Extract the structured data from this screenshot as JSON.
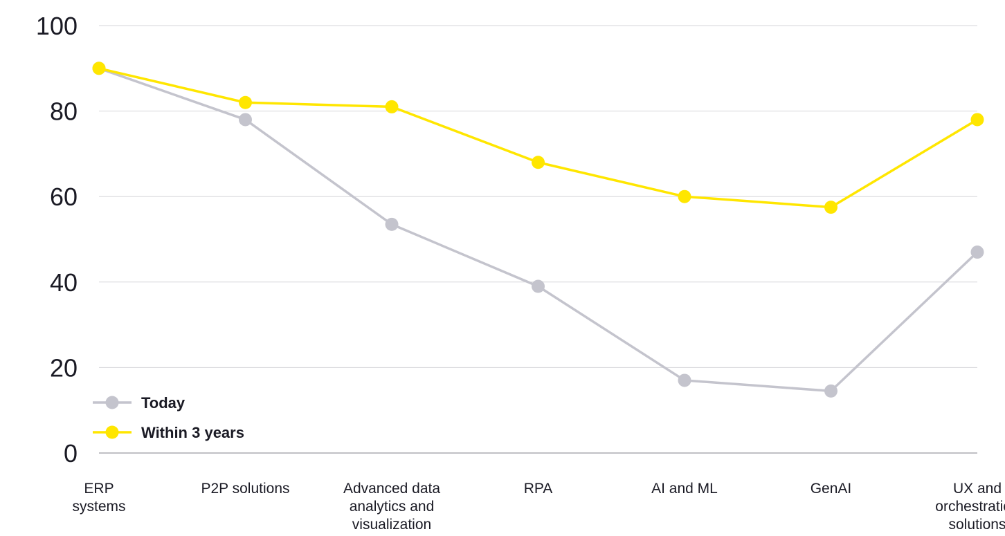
{
  "chart_data": {
    "type": "line",
    "categories": [
      "ERP systems",
      "P2P solutions",
      "Advanced data analytics and visualization",
      "RPA",
      "AI and ML",
      "GenAI",
      "UX and orchestration solutions"
    ],
    "category_lines": [
      [
        "ERP",
        "systems"
      ],
      [
        "P2P solutions"
      ],
      [
        "Advanced data",
        "analytics and",
        "visualization"
      ],
      [
        "RPA"
      ],
      [
        "AI and ML"
      ],
      [
        "GenAI"
      ],
      [
        "UX and",
        "orchestration",
        "solutions"
      ]
    ],
    "series": [
      {
        "name": "Today",
        "color": "#C4C4CD",
        "values": [
          90,
          78,
          53.5,
          39,
          17,
          14.5,
          47
        ]
      },
      {
        "name": "Within 3 years",
        "color": "#FFE600",
        "values": [
          90,
          82,
          81,
          68,
          60,
          57.5,
          78
        ]
      }
    ],
    "ylim": [
      0,
      100
    ],
    "yticks": [
      "0",
      "20",
      "40",
      "60",
      "80",
      "100"
    ],
    "grid": true,
    "legend_position": "bottom-left",
    "title": "",
    "xlabel": "",
    "ylabel": ""
  }
}
